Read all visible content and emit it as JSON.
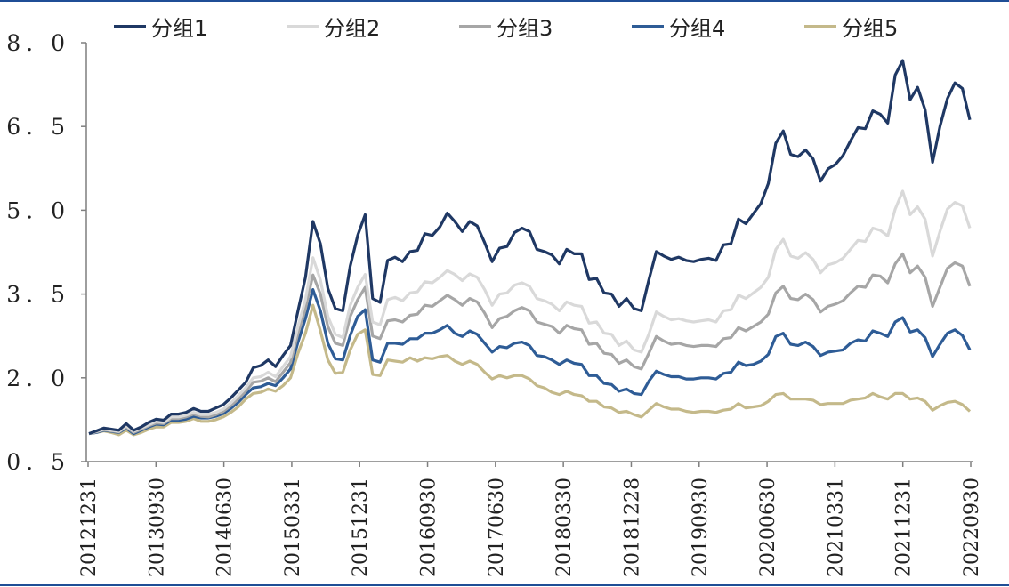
{
  "chart_data": {
    "type": "line",
    "title": "",
    "xlabel": "",
    "ylabel": "",
    "ylim": [
      0.5,
      8.0
    ],
    "yticks": [
      "0.5",
      "2.0",
      "3.5",
      "5.0",
      "6.5",
      "8.0"
    ],
    "xtick_labels": [
      "20121231",
      "20130930",
      "20140630",
      "20150331",
      "20151231",
      "20160930",
      "20170630",
      "20180330",
      "20181228",
      "20190930",
      "20200630",
      "20210331",
      "20211231",
      "20220930"
    ],
    "grid": false,
    "legend_position": "top",
    "x": [
      "201212",
      "201301",
      "201302",
      "201303",
      "201304",
      "201305",
      "201306",
      "201307",
      "201308",
      "201309",
      "201310",
      "201311",
      "201312",
      "201401",
      "201402",
      "201403",
      "201404",
      "201405",
      "201406",
      "201407",
      "201408",
      "201409",
      "201410",
      "201411",
      "201412",
      "201501",
      "201502",
      "201503",
      "201504",
      "201505",
      "201506",
      "201507",
      "201508",
      "201509",
      "201510",
      "201511",
      "201512",
      "201601",
      "201602",
      "201603",
      "201604",
      "201605",
      "201606",
      "201607",
      "201608",
      "201609",
      "201610",
      "201611",
      "201612",
      "201701",
      "201702",
      "201703",
      "201704",
      "201705",
      "201706",
      "201707",
      "201708",
      "201709",
      "201710",
      "201711",
      "201712",
      "201801",
      "201802",
      "201803",
      "201804",
      "201805",
      "201806",
      "201807",
      "201808",
      "201809",
      "201810",
      "201811",
      "201812",
      "201901",
      "201902",
      "201903",
      "201904",
      "201905",
      "201906",
      "201907",
      "201908",
      "201909",
      "201910",
      "201911",
      "201912",
      "202001",
      "202002",
      "202003",
      "202004",
      "202005",
      "202006",
      "202007",
      "202008",
      "202009",
      "202010",
      "202011",
      "202012",
      "202101",
      "202102",
      "202103",
      "202104",
      "202105",
      "202106",
      "202107",
      "202108",
      "202109",
      "202110",
      "202111",
      "202112",
      "202201",
      "202202",
      "202203",
      "202204",
      "202205",
      "202206",
      "202207",
      "202208",
      "202209",
      "202210"
    ],
    "series": [
      {
        "name": "分组1",
        "color": "#1f3864",
        "values": [
          1.0,
          1.05,
          1.1,
          1.08,
          1.06,
          1.18,
          1.06,
          1.12,
          1.2,
          1.26,
          1.24,
          1.35,
          1.35,
          1.38,
          1.45,
          1.4,
          1.4,
          1.46,
          1.52,
          1.64,
          1.78,
          1.92,
          2.18,
          2.22,
          2.32,
          2.2,
          2.4,
          2.58,
          3.2,
          3.8,
          4.8,
          4.4,
          3.6,
          3.24,
          3.2,
          4.0,
          4.55,
          4.92,
          3.42,
          3.35,
          4.1,
          4.16,
          4.08,
          4.26,
          4.28,
          4.58,
          4.55,
          4.7,
          4.95,
          4.8,
          4.62,
          4.8,
          4.72,
          4.42,
          4.08,
          4.32,
          4.35,
          4.6,
          4.68,
          4.62,
          4.3,
          4.26,
          4.2,
          4.04,
          4.3,
          4.22,
          4.22,
          3.76,
          3.78,
          3.52,
          3.5,
          3.28,
          3.42,
          3.24,
          3.2,
          3.75,
          4.26,
          4.18,
          4.12,
          4.16,
          4.1,
          4.08,
          4.12,
          4.14,
          4.1,
          4.38,
          4.4,
          4.84,
          4.76,
          4.94,
          5.12,
          5.48,
          6.2,
          6.42,
          6.0,
          5.96,
          6.08,
          5.92,
          5.52,
          5.74,
          5.82,
          5.98,
          6.24,
          6.48,
          6.46,
          6.78,
          6.72,
          6.56,
          7.42,
          7.68,
          6.98,
          7.2,
          6.8,
          5.86,
          6.5,
          7.0,
          7.28,
          7.18,
          6.62
        ]
      },
      {
        "name": "分组2",
        "color": "#d9d9d9",
        "values": [
          1.0,
          1.04,
          1.08,
          1.06,
          1.04,
          1.14,
          1.04,
          1.1,
          1.16,
          1.22,
          1.2,
          1.3,
          1.3,
          1.33,
          1.38,
          1.34,
          1.34,
          1.38,
          1.44,
          1.55,
          1.68,
          1.82,
          2.0,
          2.02,
          2.1,
          2.02,
          2.2,
          2.38,
          2.92,
          3.4,
          4.15,
          3.75,
          3.1,
          2.78,
          2.72,
          3.3,
          3.62,
          3.85,
          3.0,
          2.95,
          3.4,
          3.44,
          3.38,
          3.52,
          3.54,
          3.72,
          3.7,
          3.8,
          3.92,
          3.85,
          3.74,
          3.86,
          3.8,
          3.58,
          3.3,
          3.5,
          3.52,
          3.66,
          3.7,
          3.64,
          3.42,
          3.38,
          3.32,
          3.2,
          3.36,
          3.3,
          3.28,
          2.98,
          3.0,
          2.8,
          2.78,
          2.58,
          2.66,
          2.5,
          2.46,
          2.78,
          3.18,
          3.1,
          3.04,
          3.06,
          3.02,
          3.0,
          3.02,
          3.04,
          3.0,
          3.2,
          3.22,
          3.48,
          3.42,
          3.52,
          3.62,
          3.8,
          4.3,
          4.48,
          4.18,
          4.14,
          4.24,
          4.12,
          3.88,
          4.02,
          4.06,
          4.14,
          4.3,
          4.46,
          4.44,
          4.68,
          4.64,
          4.54,
          5.02,
          5.34,
          4.92,
          5.06,
          4.84,
          4.18,
          4.62,
          5.02,
          5.14,
          5.08,
          4.68
        ]
      },
      {
        "name": "分组3",
        "color": "#a6a6a6",
        "values": [
          1.0,
          1.03,
          1.07,
          1.05,
          1.03,
          1.12,
          1.02,
          1.08,
          1.14,
          1.19,
          1.18,
          1.27,
          1.27,
          1.3,
          1.35,
          1.31,
          1.3,
          1.34,
          1.4,
          1.5,
          1.62,
          1.76,
          1.92,
          1.94,
          2.0,
          1.93,
          2.1,
          2.27,
          2.8,
          3.24,
          3.84,
          3.5,
          2.92,
          2.62,
          2.58,
          3.1,
          3.4,
          3.62,
          2.75,
          2.7,
          3.02,
          3.04,
          3.0,
          3.12,
          3.14,
          3.3,
          3.28,
          3.38,
          3.48,
          3.4,
          3.3,
          3.42,
          3.36,
          3.16,
          2.9,
          3.06,
          3.1,
          3.2,
          3.26,
          3.2,
          3.0,
          2.96,
          2.92,
          2.8,
          2.94,
          2.88,
          2.86,
          2.6,
          2.62,
          2.44,
          2.42,
          2.26,
          2.32,
          2.2,
          2.16,
          2.44,
          2.74,
          2.66,
          2.6,
          2.62,
          2.58,
          2.56,
          2.58,
          2.58,
          2.56,
          2.7,
          2.72,
          2.9,
          2.84,
          2.92,
          3.0,
          3.14,
          3.52,
          3.64,
          3.42,
          3.4,
          3.5,
          3.4,
          3.18,
          3.28,
          3.32,
          3.38,
          3.52,
          3.64,
          3.62,
          3.84,
          3.82,
          3.7,
          4.04,
          4.22,
          3.88,
          4.0,
          3.8,
          3.28,
          3.62,
          3.96,
          4.06,
          4.0,
          3.64
        ]
      },
      {
        "name": "分组4",
        "color": "#2e5c96",
        "values": [
          1.0,
          1.02,
          1.06,
          1.04,
          1.02,
          1.1,
          1.0,
          1.06,
          1.12,
          1.17,
          1.16,
          1.24,
          1.24,
          1.26,
          1.31,
          1.28,
          1.28,
          1.31,
          1.36,
          1.45,
          1.56,
          1.7,
          1.82,
          1.84,
          1.9,
          1.86,
          2.0,
          2.16,
          2.64,
          3.06,
          3.58,
          3.2,
          2.62,
          2.34,
          2.32,
          2.76,
          3.1,
          3.22,
          2.32,
          2.28,
          2.62,
          2.62,
          2.6,
          2.7,
          2.7,
          2.8,
          2.8,
          2.86,
          2.94,
          2.8,
          2.74,
          2.84,
          2.78,
          2.62,
          2.46,
          2.56,
          2.54,
          2.62,
          2.64,
          2.58,
          2.4,
          2.38,
          2.32,
          2.24,
          2.32,
          2.26,
          2.24,
          2.04,
          2.04,
          1.9,
          1.88,
          1.76,
          1.8,
          1.72,
          1.7,
          1.94,
          2.12,
          2.06,
          2.02,
          2.02,
          1.98,
          1.98,
          2.0,
          2.0,
          1.98,
          2.08,
          2.1,
          2.28,
          2.22,
          2.24,
          2.3,
          2.42,
          2.74,
          2.8,
          2.6,
          2.58,
          2.64,
          2.56,
          2.4,
          2.46,
          2.48,
          2.5,
          2.62,
          2.68,
          2.66,
          2.84,
          2.8,
          2.74,
          3.0,
          3.08,
          2.82,
          2.86,
          2.72,
          2.38,
          2.6,
          2.8,
          2.86,
          2.76,
          2.5
        ]
      },
      {
        "name": "分组5",
        "color": "#c4b98a",
        "values": [
          1.0,
          1.02,
          1.05,
          1.02,
          0.98,
          1.06,
          0.98,
          1.02,
          1.08,
          1.12,
          1.12,
          1.2,
          1.2,
          1.22,
          1.27,
          1.22,
          1.22,
          1.25,
          1.3,
          1.38,
          1.48,
          1.62,
          1.72,
          1.74,
          1.8,
          1.76,
          1.86,
          2.0,
          2.44,
          2.8,
          3.3,
          2.84,
          2.32,
          2.08,
          2.1,
          2.5,
          2.78,
          2.86,
          2.06,
          2.04,
          2.32,
          2.3,
          2.28,
          2.36,
          2.3,
          2.36,
          2.34,
          2.38,
          2.4,
          2.3,
          2.24,
          2.3,
          2.24,
          2.1,
          1.98,
          2.04,
          2.0,
          2.04,
          2.04,
          1.98,
          1.86,
          1.82,
          1.74,
          1.7,
          1.76,
          1.7,
          1.68,
          1.58,
          1.58,
          1.48,
          1.46,
          1.38,
          1.4,
          1.34,
          1.3,
          1.42,
          1.54,
          1.48,
          1.44,
          1.44,
          1.4,
          1.38,
          1.4,
          1.4,
          1.38,
          1.42,
          1.44,
          1.54,
          1.46,
          1.48,
          1.5,
          1.58,
          1.7,
          1.72,
          1.62,
          1.62,
          1.62,
          1.6,
          1.52,
          1.54,
          1.54,
          1.54,
          1.6,
          1.62,
          1.64,
          1.72,
          1.66,
          1.62,
          1.72,
          1.72,
          1.62,
          1.64,
          1.58,
          1.42,
          1.5,
          1.56,
          1.58,
          1.52,
          1.4
        ]
      }
    ]
  }
}
